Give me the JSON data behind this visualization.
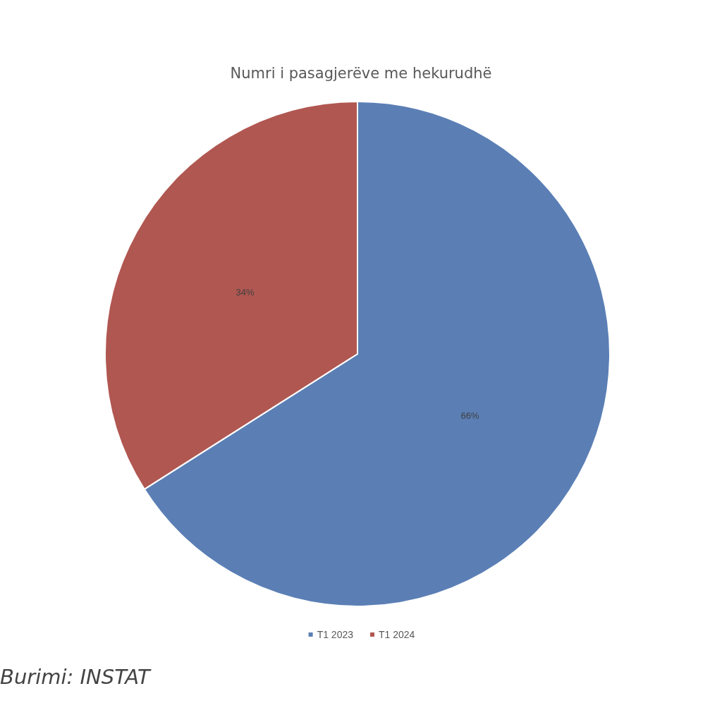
{
  "chart_data": {
    "type": "pie",
    "title": "Numri i pasagjerëve me hekurudhë",
    "categories": [
      "T1 2023",
      "T1 2024"
    ],
    "values": [
      66,
      34
    ],
    "colors": [
      "#5b7fb5",
      "#b05751"
    ],
    "value_labels": [
      "66%",
      "34%"
    ],
    "legend": "bottom",
    "annotations": [
      "Burimi: INSTAT"
    ]
  }
}
